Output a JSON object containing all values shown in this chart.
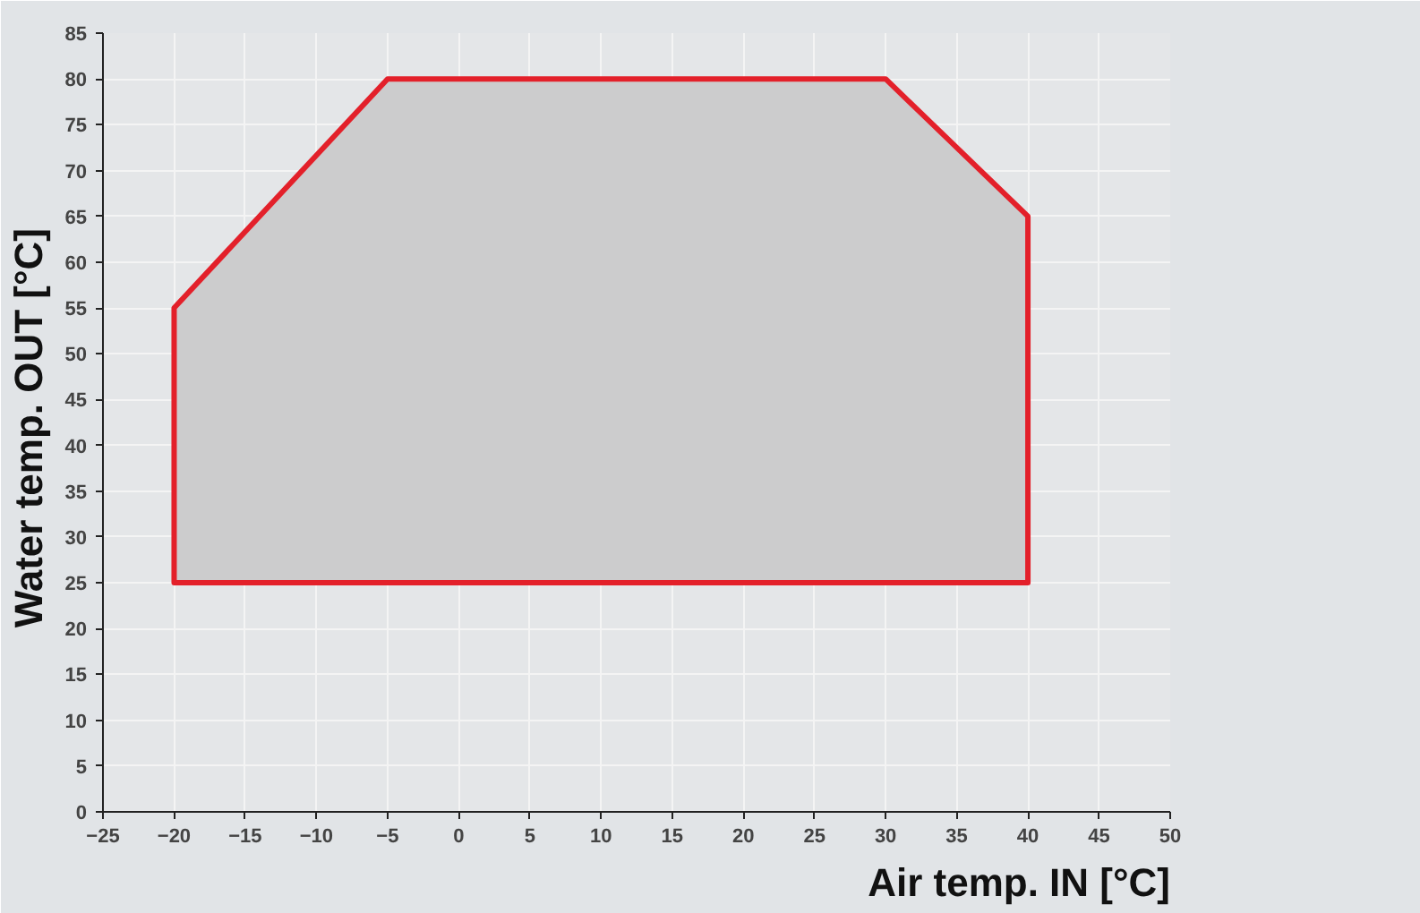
{
  "chart_data": {
    "type": "area",
    "xlabel": "Air temp. IN [°C]",
    "ylabel": "Water temp. OUT  [°C]",
    "x": [
      -20,
      -20,
      -5,
      30,
      40,
      40,
      -20
    ],
    "series": [
      {
        "color": "#e3202a",
        "values": [
          25,
          55,
          80,
          80,
          65,
          25,
          25
        ]
      }
    ],
    "xlim": [
      -25,
      50
    ],
    "ylim": [
      0,
      85
    ],
    "xticks": [
      -25,
      -20,
      -15,
      -10,
      -5,
      0,
      5,
      10,
      15,
      20,
      25,
      30,
      35,
      40,
      45,
      50
    ],
    "yticks": [
      0,
      5,
      10,
      15,
      20,
      25,
      30,
      35,
      40,
      45,
      50,
      55,
      60,
      65,
      70,
      75,
      80,
      85
    ],
    "grid": true
  }
}
